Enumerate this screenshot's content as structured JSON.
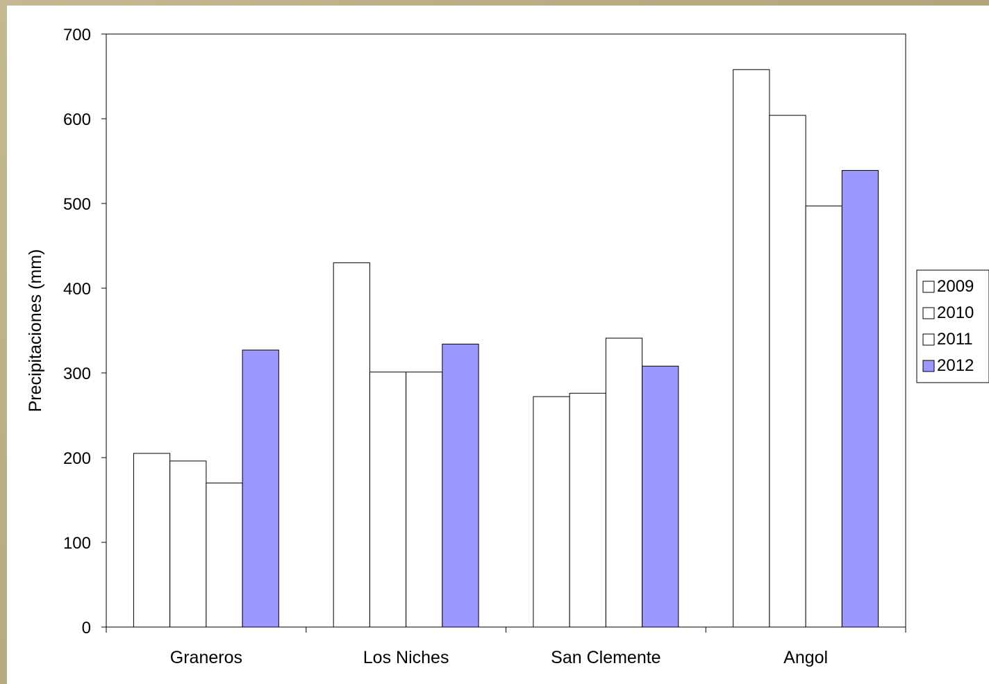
{
  "chart_data": {
    "type": "bar",
    "title": "",
    "xlabel": "",
    "ylabel": "Precipitaciones (mm)",
    "ylim": [
      0,
      700
    ],
    "yticks": [
      0,
      100,
      200,
      300,
      400,
      500,
      600,
      700
    ],
    "categories": [
      "Graneros",
      "Los Niches",
      "San Clemente",
      "Angol"
    ],
    "series": [
      {
        "name": "2009",
        "color": "#ffffff",
        "values": [
          205,
          430,
          272,
          658
        ]
      },
      {
        "name": "2010",
        "color": "#ffffff",
        "values": [
          196,
          301,
          276,
          604
        ]
      },
      {
        "name": "2011",
        "color": "#ffffff",
        "values": [
          170,
          301,
          341,
          497
        ]
      },
      {
        "name": "2012",
        "color": "#9999ff",
        "values": [
          327,
          334,
          308,
          539
        ]
      }
    ],
    "grid": false,
    "legend_position": "right"
  }
}
